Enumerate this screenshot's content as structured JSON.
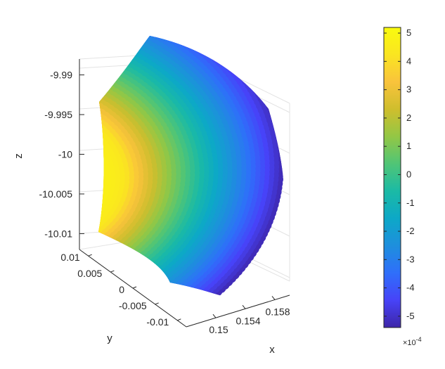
{
  "chart_data": {
    "type": "scatter3d",
    "view": "3-D perspective scatter of a curved shell segment, colored by value",
    "axes": {
      "x": {
        "label": "x",
        "ticks": [
          "0.15",
          "0.154",
          "0.158"
        ],
        "values": [
          0.15,
          0.154,
          0.158
        ],
        "range": [
          0.146,
          0.16
        ]
      },
      "y": {
        "label": "y",
        "ticks": [
          "0.01",
          "0.005",
          "0",
          "-0.005",
          "-0.01"
        ],
        "values": [
          0.01,
          0.005,
          0,
          -0.005,
          -0.01
        ],
        "range": [
          -0.012,
          0.012
        ]
      },
      "z": {
        "label": "z",
        "ticks": [
          "-9.99",
          "-9.995",
          "-10",
          "-10.005",
          "-10.01"
        ],
        "values": [
          -9.99,
          -9.995,
          -10,
          -10.005,
          -10.01
        ],
        "range": [
          -10.012,
          -9.988
        ]
      }
    },
    "grid": true,
    "colorbar": {
      "colormap": "parula",
      "ticks": [
        "5",
        "4",
        "3",
        "2",
        "1",
        "0",
        "-1",
        "-2",
        "-3",
        "-4",
        "-5"
      ],
      "tick_values": [
        5,
        4,
        3,
        2,
        1,
        0,
        -1,
        -2,
        -3,
        -4,
        -5
      ],
      "range": [
        -5.4,
        5.2
      ],
      "exponent_label": "×10",
      "exponent_power": "-4"
    },
    "colors": {
      "parula": [
        "#3e26a8",
        "#4743f8",
        "#2f6ffa",
        "#1e8fdd",
        "#0da8c7",
        "#1bbaa5",
        "#50c576",
        "#93c745",
        "#cfbe2d",
        "#f9c33c",
        "#fae521",
        "#f9fb0e"
      ]
    }
  }
}
